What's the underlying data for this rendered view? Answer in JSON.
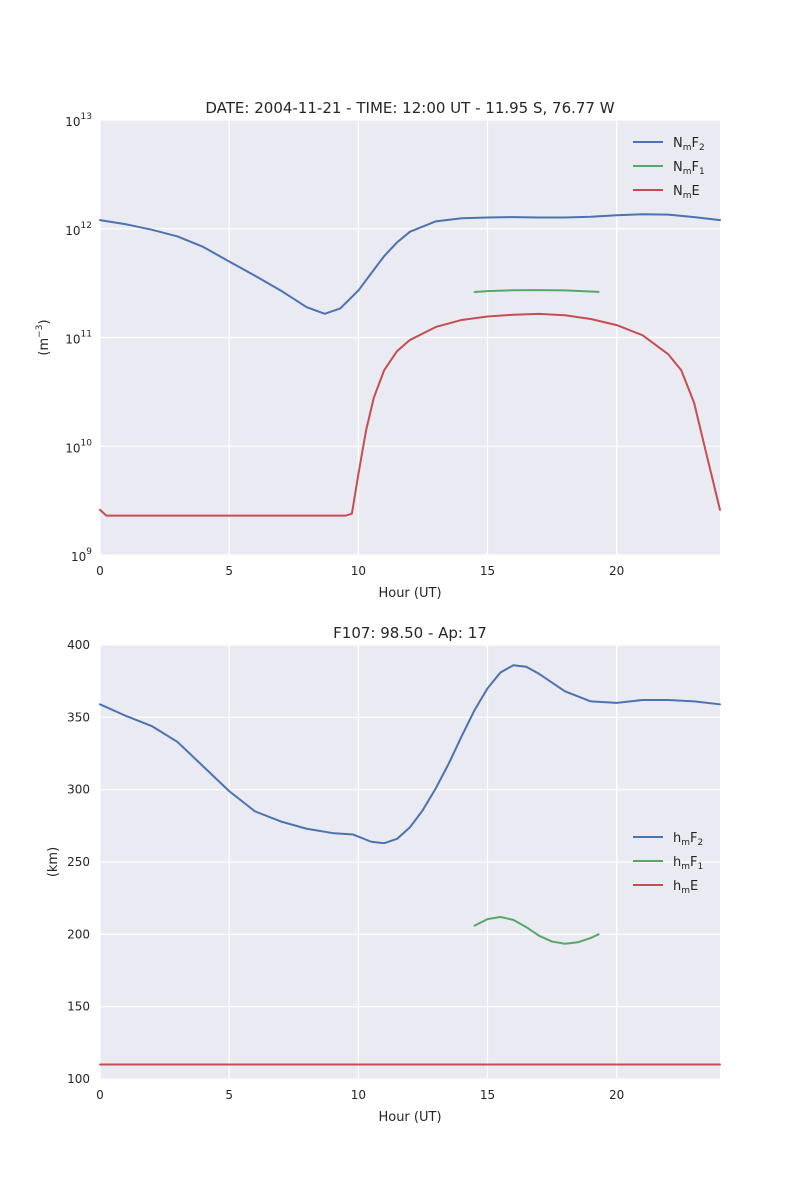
{
  "chart_data": [
    {
      "type": "line",
      "title": "DATE: 2004-11-21 - TIME: 12:00 UT  -   11.95 S,  76.77 W",
      "xlabel": "Hour (UT)",
      "ylabel": {
        "base": "(m",
        "exp": "−3",
        "close": ")"
      },
      "yscale": "log",
      "xlim": [
        0,
        24
      ],
      "ylim": [
        1000000000.0,
        10000000000000.0
      ],
      "grid": true,
      "legend_position": "top-right",
      "x_ticks": [
        {
          "value": 0,
          "label": "0"
        },
        {
          "value": 5,
          "label": "5"
        },
        {
          "value": 10,
          "label": "10"
        },
        {
          "value": 15,
          "label": "15"
        },
        {
          "value": 20,
          "label": "20"
        }
      ],
      "y_ticks": [
        {
          "value": 1000000000.0,
          "base": "10",
          "exp": "9"
        },
        {
          "value": 10000000000.0,
          "base": "10",
          "exp": "10"
        },
        {
          "value": 100000000000.0,
          "base": "10",
          "exp": "11"
        },
        {
          "value": 1000000000000.0,
          "base": "10",
          "exp": "12"
        },
        {
          "value": 10000000000000.0,
          "base": "10",
          "exp": "13"
        }
      ],
      "series": [
        {
          "name": {
            "main": "N",
            "sub": "m",
            "tail": "F",
            "tail_sub": "2"
          },
          "color": "#4c72b0",
          "x": [
            0,
            1,
            2,
            3,
            4,
            5,
            6,
            7,
            8,
            8.7,
            9.3,
            10,
            10.5,
            11,
            11.5,
            12,
            13,
            14,
            15,
            16,
            17,
            18,
            19,
            20,
            21,
            22,
            23,
            24
          ],
          "y": [
            1200000000000.0,
            1100000000000.0,
            980000000000.0,
            850000000000.0,
            680000000000.0,
            500000000000.0,
            370000000000.0,
            270000000000.0,
            190000000000.0,
            165000000000.0,
            185000000000.0,
            270000000000.0,
            390000000000.0,
            560000000000.0,
            750000000000.0,
            940000000000.0,
            1170000000000.0,
            1250000000000.0,
            1270000000000.0,
            1280000000000.0,
            1270000000000.0,
            1270000000000.0,
            1290000000000.0,
            1330000000000.0,
            1360000000000.0,
            1350000000000.0,
            1280000000000.0,
            1200000000000.0
          ]
        },
        {
          "name": {
            "main": "N",
            "sub": "m",
            "tail": "F",
            "tail_sub": "1"
          },
          "color": "#55a868",
          "x": [
            14.5,
            15,
            16,
            17,
            18,
            19.3
          ],
          "y": [
            262000000000.0,
            267000000000.0,
            272000000000.0,
            273000000000.0,
            271000000000.0,
            263000000000.0
          ]
        },
        {
          "name": {
            "main": "N",
            "sub": "m",
            "tail": "E",
            "tail_sub": ""
          },
          "color": "#c44e52",
          "x": [
            0,
            0.25,
            1,
            3,
            5,
            7,
            9,
            9.5,
            9.75,
            10,
            10.3,
            10.6,
            11,
            11.5,
            12,
            13,
            14,
            15,
            16,
            17,
            18,
            19,
            20,
            21,
            22,
            22.5,
            23,
            23.5,
            24
          ],
          "y": [
            2600000000.0,
            2300000000.0,
            2300000000.0,
            2300000000.0,
            2300000000.0,
            2300000000.0,
            2300000000.0,
            2300000000.0,
            2400000000.0,
            5500000000.0,
            14000000000.0,
            28000000000.0,
            50000000000.0,
            75000000000.0,
            95000000000.0,
            125000000000.0,
            145000000000.0,
            156000000000.0,
            162000000000.0,
            165000000000.0,
            160000000000.0,
            148000000000.0,
            130000000000.0,
            105000000000.0,
            70000000000.0,
            50000000000.0,
            25000000000.0,
            8000000000.0,
            2600000000.0
          ]
        }
      ]
    },
    {
      "type": "line",
      "title": "F107:  98.50  -  Ap:  17",
      "xlabel": "Hour (UT)",
      "ylabel": {
        "base": "(km)",
        "exp": "",
        "close": ""
      },
      "yscale": "linear",
      "xlim": [
        0,
        24
      ],
      "ylim": [
        100,
        400
      ],
      "grid": true,
      "legend_position": "center-right",
      "x_ticks": [
        {
          "value": 0,
          "label": "0"
        },
        {
          "value": 5,
          "label": "5"
        },
        {
          "value": 10,
          "label": "10"
        },
        {
          "value": 15,
          "label": "15"
        },
        {
          "value": 20,
          "label": "20"
        }
      ],
      "y_ticks": [
        {
          "value": 100,
          "base": "100",
          "exp": ""
        },
        {
          "value": 150,
          "base": "150",
          "exp": ""
        },
        {
          "value": 200,
          "base": "200",
          "exp": ""
        },
        {
          "value": 250,
          "base": "250",
          "exp": ""
        },
        {
          "value": 300,
          "base": "300",
          "exp": ""
        },
        {
          "value": 350,
          "base": "350",
          "exp": ""
        },
        {
          "value": 400,
          "base": "400",
          "exp": ""
        }
      ],
      "series": [
        {
          "name": {
            "main": "h",
            "sub": "m",
            "tail": "F",
            "tail_sub": "2"
          },
          "color": "#4c72b0",
          "x": [
            0,
            1,
            2,
            3,
            4,
            5,
            6,
            7,
            8,
            9,
            9.8,
            10.5,
            11,
            11.5,
            12,
            12.5,
            13,
            13.5,
            14,
            14.5,
            15,
            15.5,
            16,
            16.5,
            17,
            18,
            19,
            20,
            21,
            22,
            23,
            24
          ],
          "y": [
            359,
            351,
            344,
            333,
            316,
            299,
            285,
            278,
            273,
            270,
            269,
            264,
            263,
            266,
            274,
            286,
            301,
            318,
            337,
            355,
            370,
            381,
            386,
            385,
            380,
            368,
            361,
            360,
            362,
            362,
            361,
            359
          ]
        },
        {
          "name": {
            "main": "h",
            "sub": "m",
            "tail": "F",
            "tail_sub": "1"
          },
          "color": "#55a868",
          "x": [
            14.5,
            15,
            15.5,
            16,
            16.5,
            17,
            17.5,
            18,
            18.5,
            19,
            19.3
          ],
          "y": [
            206,
            210.5,
            212,
            210,
            205,
            199,
            195,
            193.5,
            194.5,
            197.5,
            200
          ]
        },
        {
          "name": {
            "main": "h",
            "sub": "m",
            "tail": "E",
            "tail_sub": ""
          },
          "color": "#c44e52",
          "x": [
            0,
            24
          ],
          "y": [
            110,
            110
          ]
        }
      ]
    }
  ]
}
